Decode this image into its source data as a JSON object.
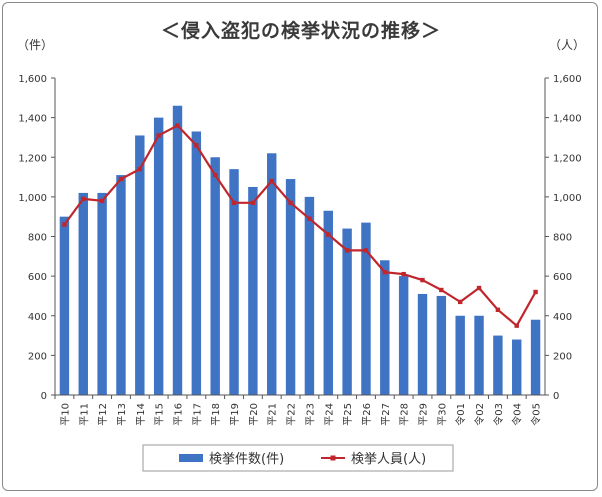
{
  "chart_data": {
    "type": "bar",
    "title": "＜侵入盗犯の検挙状況の推移＞",
    "left_unit": "（件）",
    "right_unit": "（人）",
    "categories": [
      "平10",
      "平11",
      "平12",
      "平13",
      "平14",
      "平15",
      "平16",
      "平17",
      "平18",
      "平19",
      "平20",
      "平21",
      "平22",
      "平23",
      "平24",
      "平25",
      "平26",
      "平27",
      "平28",
      "平29",
      "平30",
      "令01",
      "令02",
      "令03",
      "令04",
      "令05"
    ],
    "y_ticks": [
      "0",
      "200",
      "400",
      "600",
      "800",
      "1,000",
      "1,200",
      "1,400",
      "1,600"
    ],
    "ylim": [
      0,
      1600
    ],
    "grid": false,
    "legend_position": "bottom",
    "series": [
      {
        "name": "検挙件数(件)",
        "type": "bar",
        "axis": "left",
        "color": "#3f74c5",
        "values": [
          900,
          1020,
          1020,
          1110,
          1310,
          1400,
          1460,
          1330,
          1200,
          1140,
          1050,
          1220,
          1090,
          1000,
          930,
          840,
          870,
          680,
          600,
          510,
          500,
          400,
          400,
          300,
          280,
          380
        ]
      },
      {
        "name": "検挙人員(人)",
        "type": "line",
        "axis": "right",
        "color": "#c0262b",
        "values": [
          860,
          990,
          980,
          1090,
          1140,
          1310,
          1360,
          1260,
          1110,
          970,
          970,
          1080,
          970,
          890,
          810,
          730,
          730,
          620,
          610,
          580,
          530,
          470,
          540,
          430,
          350,
          520
        ]
      }
    ]
  }
}
